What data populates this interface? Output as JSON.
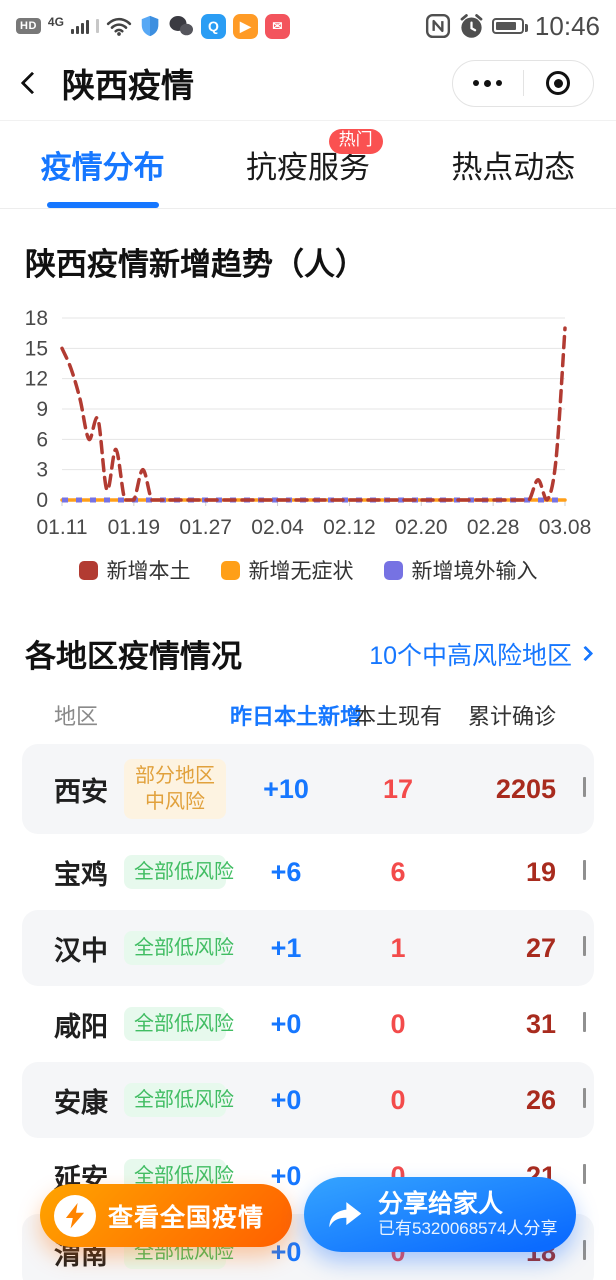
{
  "status_bar": {
    "time": "10:46",
    "left_icons": [
      "hd-badge",
      "4g-signal-icon",
      "sim2-signal-icon",
      "wifi-icon",
      "shield-icon",
      "wechat-icon",
      "search-app-icon",
      "video-app-icon",
      "red-app-icon"
    ],
    "right_icons": [
      "nfc-icon",
      "alarm-icon",
      "battery-icon"
    ],
    "hd_label": "HD",
    "network_label": "4G"
  },
  "header": {
    "title": "陕西疫情"
  },
  "tabs": [
    {
      "label": "疫情分布",
      "active": true
    },
    {
      "label": "抗疫服务",
      "active": false,
      "badge": "热门"
    },
    {
      "label": "热点动态",
      "active": false
    }
  ],
  "chart_data": {
    "type": "line",
    "title": "陕西疫情新增趋势（人）",
    "xlabel": "",
    "ylabel": "",
    "ylim": [
      0,
      18
    ],
    "y_ticks": [
      0,
      3,
      6,
      9,
      12,
      15,
      18
    ],
    "x_tick_labels": [
      "01.11",
      "01.19",
      "01.27",
      "02.04",
      "02.12",
      "02.20",
      "02.28",
      "03.08"
    ],
    "x_tick_indices": [
      0,
      8,
      16,
      24,
      32,
      40,
      48,
      56
    ],
    "grid": true,
    "legend_position": "bottom",
    "series": [
      {
        "name": "新增本土",
        "color": "#b23b32",
        "style": "dashed",
        "values": [
          15,
          13,
          10,
          6,
          8,
          1,
          5,
          0,
          0,
          3,
          0,
          0,
          0,
          0,
          0,
          0,
          0,
          0,
          0,
          0,
          0,
          0,
          0,
          0,
          0,
          0,
          0,
          0,
          0,
          0,
          0,
          0,
          0,
          0,
          0,
          0,
          0,
          0,
          0,
          0,
          0,
          0,
          0,
          0,
          0,
          0,
          0,
          0,
          0,
          0,
          0,
          0,
          0,
          2,
          0,
          4,
          17
        ]
      },
      {
        "name": "新增无症状",
        "color": "#ff9f18",
        "style": "solid",
        "values": [
          0,
          0,
          0,
          0,
          0,
          0,
          0,
          0,
          0,
          0,
          0,
          0,
          0,
          0,
          0,
          0,
          0,
          0,
          0,
          0,
          0,
          0,
          0,
          0,
          0,
          0,
          0,
          0,
          0,
          0,
          0,
          0,
          0,
          0,
          0,
          0,
          0,
          0,
          0,
          0,
          0,
          0,
          0,
          0,
          0,
          0,
          0,
          0,
          0,
          0,
          0,
          0,
          0,
          0,
          0,
          0,
          0
        ]
      },
      {
        "name": "新增境外输入",
        "color": "#7672e3",
        "style": "dotted",
        "values": [
          0,
          0,
          0,
          0,
          0,
          0,
          0,
          0,
          0,
          0,
          0,
          0,
          0,
          0,
          0,
          0,
          0,
          0,
          0,
          0,
          0,
          0,
          0,
          0,
          0,
          0,
          0,
          0,
          0,
          0,
          0,
          0,
          0,
          0,
          0,
          0,
          0,
          0,
          0,
          0,
          0,
          0,
          0,
          0,
          0,
          0,
          0,
          0,
          0,
          0,
          0,
          0,
          0,
          0,
          0,
          0,
          0
        ]
      }
    ]
  },
  "region_section": {
    "title": "各地区疫情情况",
    "link_label": "10个中高风险地区",
    "headers": [
      "地区",
      "昨日本土新增",
      "本土现有",
      "累计确诊"
    ],
    "rows": [
      {
        "region": "西安",
        "risk": "部分地区中风险",
        "risk_level": "medium",
        "new_local": "+10",
        "current": "17",
        "total": "2205"
      },
      {
        "region": "宝鸡",
        "risk": "全部低风险",
        "risk_level": "low",
        "new_local": "+6",
        "current": "6",
        "total": "19"
      },
      {
        "region": "汉中",
        "risk": "全部低风险",
        "risk_level": "low",
        "new_local": "+1",
        "current": "1",
        "total": "27"
      },
      {
        "region": "咸阳",
        "risk": "全部低风险",
        "risk_level": "low",
        "new_local": "+0",
        "current": "0",
        "total": "31"
      },
      {
        "region": "安康",
        "risk": "全部低风险",
        "risk_level": "low",
        "new_local": "+0",
        "current": "0",
        "total": "26"
      },
      {
        "region": "延安",
        "risk": "全部低风险",
        "risk_level": "low",
        "new_local": "+0",
        "current": "0",
        "total": "21"
      },
      {
        "region": "渭南",
        "risk": "全部低风险",
        "risk_level": "low",
        "new_local": "+0",
        "current": "0",
        "total": "18"
      }
    ]
  },
  "floating_buttons": {
    "national_label": "查看全国疫情",
    "share_label": "分享给家人",
    "share_sublabel": "已有5320068574人分享"
  },
  "colors": {
    "accent_blue": "#1677ff",
    "hot_badge_red": "#fa5151",
    "current_red": "#f34b4b",
    "total_dark_red": "#a82b1e",
    "low_risk_green": "#41bd63",
    "medium_risk_orange": "#e1a13c",
    "series_local_red": "#b23b32",
    "series_asymptomatic_orange": "#ff9f18",
    "series_imported_purple": "#7672e3",
    "national_btn_gradient": [
      "#ffa400",
      "#ff5f00"
    ],
    "share_btn_gradient": [
      "#35a4ff",
      "#0b6bff"
    ]
  }
}
